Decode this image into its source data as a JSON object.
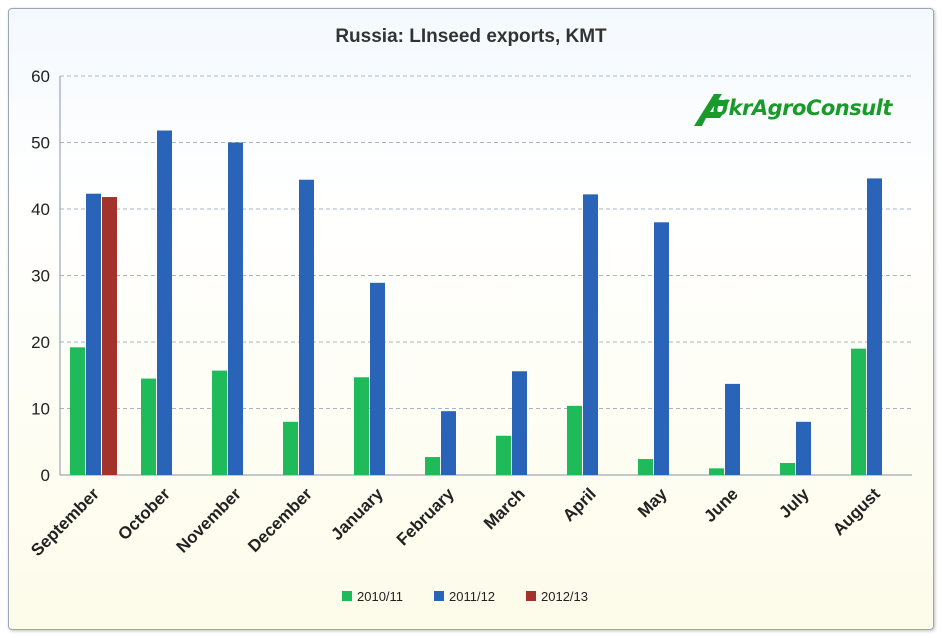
{
  "chart_data": {
    "type": "bar",
    "title": "Russia: LInseed exports, KMT",
    "xlabel": "",
    "ylabel": "",
    "ylim": [
      0,
      60
    ],
    "yticks": [
      0,
      10,
      20,
      30,
      40,
      50,
      60
    ],
    "grid": "horizontal-dashed",
    "legend_position": "bottom",
    "categories": [
      "September",
      "October",
      "November",
      "December",
      "January",
      "February",
      "March",
      "April",
      "May",
      "June",
      "July",
      "August"
    ],
    "series": [
      {
        "name": "2010/11",
        "color": "#1fba5a",
        "values": [
          19.2,
          14.5,
          15.7,
          8.0,
          14.7,
          2.7,
          5.9,
          10.4,
          2.4,
          1.0,
          1.8,
          19.0
        ]
      },
      {
        "name": "2011/12",
        "color": "#2a64b8",
        "values": [
          42.3,
          51.8,
          50.0,
          44.4,
          28.9,
          9.6,
          15.6,
          42.2,
          38.0,
          13.7,
          8.0,
          44.6
        ]
      },
      {
        "name": "2012/13",
        "color": "#a3322d",
        "values": [
          41.8,
          null,
          null,
          null,
          null,
          null,
          null,
          null,
          null,
          null,
          null,
          null
        ]
      }
    ]
  },
  "logo": {
    "text": "UkrAgroConsult",
    "color": "#1a9a2a",
    "icon": "logo-arrow-icon"
  }
}
